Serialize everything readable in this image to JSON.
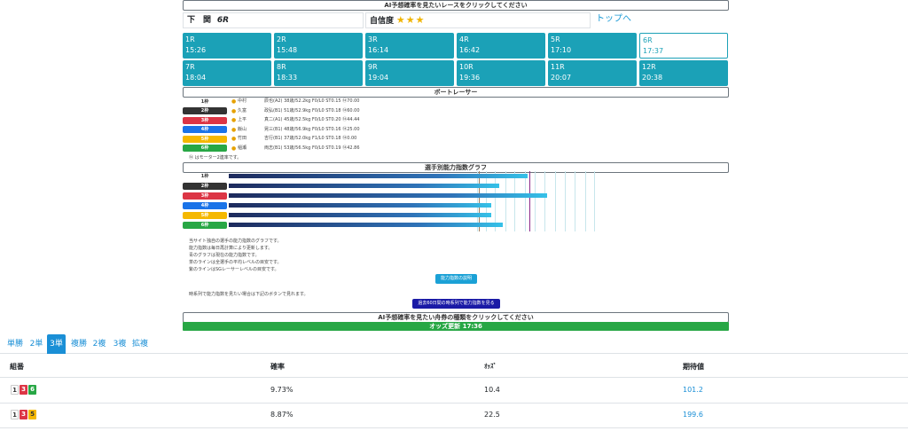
{
  "header": {
    "ai_prompt": "AI予想確率を見たいレースをクリックしてください",
    "venue": "下　関",
    "race": "6R",
    "confidence_label": "自信度",
    "stars": "★★★",
    "top_link": "トップへ"
  },
  "races": [
    {
      "num": "1R",
      "time": "15:26"
    },
    {
      "num": "2R",
      "time": "15:48"
    },
    {
      "num": "3R",
      "time": "16:14"
    },
    {
      "num": "4R",
      "time": "16:42"
    },
    {
      "num": "5R",
      "time": "17:10"
    },
    {
      "num": "6R",
      "time": "17:37"
    },
    {
      "num": "7R",
      "time": "18:04"
    },
    {
      "num": "8R",
      "time": "18:33"
    },
    {
      "num": "9R",
      "time": "19:04"
    },
    {
      "num": "10R",
      "time": "19:36"
    },
    {
      "num": "11R",
      "time": "20:07"
    },
    {
      "num": "12R",
      "time": "20:38"
    }
  ],
  "boat_racer_title": "ボートレーサー",
  "racers": [
    {
      "waku": "1枠",
      "name": "中村",
      "stats": "辰也(A2) 38歳/52.2kg F0/L0 ST0.15 ⑭70.00",
      "color": "#ffffff"
    },
    {
      "waku": "2枠",
      "name": "久富",
      "stats": "政弘(B1) 51歳/52.9kg F0/L0 ST0.18 ⑭60.00",
      "color": "#333333"
    },
    {
      "waku": "3枠",
      "name": "上平",
      "stats": "真二(A1) 45歳/52.5kg F0/L0 ST0.20 ⑭44.44",
      "color": "#dc3545"
    },
    {
      "waku": "4枠",
      "name": "飯山",
      "stats": "晃三(B1) 48歳/56.9kg F0/L0 ST0.16 ⑭25.00",
      "color": "#1a73e8"
    },
    {
      "waku": "5枠",
      "name": "竹田",
      "stats": "吉行(B1) 37歳/52.0kg F1/L0 ST0.18 ⑭0.00",
      "color": "#f5b800"
    },
    {
      "waku": "6枠",
      "name": "稲瀬",
      "stats": "両志(B1) 53歳/56.5kg F0/L0 ST0.19 ⑭42.86",
      "color": "#28a745"
    }
  ],
  "motor_note": "⑭ はモーター2連率です。",
  "graph_title": "選手別能力指数グラフ",
  "graph_values": [
    0.74,
    0.67,
    0.79,
    0.65,
    0.65,
    0.68
  ],
  "explanation": [
    "当サイト独自の選手の能力指数のグラフです。",
    "能力指数は毎日再計算により更新します。",
    "青のグラフは現在の能力指数です。",
    "茶のラインは全選手の平均レベルの目安です。",
    "紫のラインはSGレーサーレベルの目安です。"
  ],
  "ability_btn": "能力指数の説明",
  "past_note": "時系列で能力指数を見たい場合は下記のボタンで見れます。",
  "past_btn": "過去60日間の時系列で能力指数を見る",
  "bet_prompt": "AI予想確率を見たい舟券の種類をクリックしてください",
  "odds_update": "オッズ更新 17:36",
  "tabs": [
    "単勝",
    "2単",
    "3単",
    "複勝",
    "2複",
    "3複",
    "拡複"
  ],
  "table": {
    "headers": [
      "組番",
      "確率",
      "ｵｯｽﾞ",
      "期待値"
    ],
    "rows": [
      {
        "combo": [
          "1",
          "3",
          "6"
        ],
        "prob": "9.73%",
        "odds": "10.4",
        "ev": "101.2"
      },
      {
        "combo": [
          "1",
          "3",
          "5"
        ],
        "prob": "8.87%",
        "odds": "22.5",
        "ev": "199.6"
      }
    ]
  },
  "colors": {
    "teal": "#1ba1b7",
    "blue": "#1a8fd6",
    "green": "#28a745"
  }
}
